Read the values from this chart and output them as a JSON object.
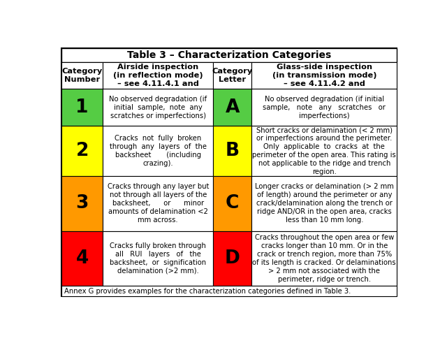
{
  "title": "Table 3 – Characterization Categories",
  "col_headers": [
    "Category\nNumber",
    "Airside inspection\n(in reflection mode)\n– see 4.11.4.1 and",
    "Category\nLetter",
    "Glass-side inspection\n(in transmission mode)\n– see 4.11.4.2 and"
  ],
  "rows": [
    {
      "number": "1",
      "number_color": "#55cc44",
      "number_text_color": "#000000",
      "airside_text": "No observed degradation (if\ninitial  sample,  note  any\nscratches or imperfections)",
      "letter": "A",
      "letter_color": "#55cc44",
      "letter_text_color": "#000000",
      "glassside_text": "No observed degradation (if initial\nsample,   note   any   scratches   or\nimperfections)"
    },
    {
      "number": "2",
      "number_color": "#ffff00",
      "number_text_color": "#000000",
      "airside_text": "Cracks  not  fully  broken\nthrough  any  layers  of  the\nbacksheet       (including\ncrazing).",
      "letter": "B",
      "letter_color": "#ffff00",
      "letter_text_color": "#000000",
      "glassside_text": "Short cracks or delamination (< 2 mm)\nor imperfections around the perimeter.\nOnly  applicable  to  cracks  at  the\nperimeter of the open area. This rating is\nnot applicable to the ridge and trench\nregion."
    },
    {
      "number": "3",
      "number_color": "#ff9900",
      "number_text_color": "#000000",
      "airside_text": "Cracks through any layer but\nnot through all layers of the\nbacksheet,      or      minor\namounts of delamination <2\nmm across.",
      "letter": "C",
      "letter_color": "#ff9900",
      "letter_text_color": "#000000",
      "glassside_text": "Longer cracks or delamination (> 2 mm\nof length) around the perimeter or any\ncrack/delamination along the trench or\nridge AND/OR in the open area, cracks\nless than 10 mm long."
    },
    {
      "number": "4",
      "number_color": "#ff0000",
      "number_text_color": "#000000",
      "airside_text": "Cracks fully broken through\nall   RUI   layers   of   the\nbacksheet,  or  signification\ndelamination (>2 mm).",
      "letter": "D",
      "letter_color": "#ff0000",
      "letter_text_color": "#000000",
      "glassside_text": "Cracks throughout the open area or few\ncracks longer than 10 mm. Or in the\ncrack or trench region, more than 75%\nof its length is cracked. Or delaminations\n> 2 mm not associated with the\nperimeter, ridge or trench."
    }
  ],
  "footer": "Annex G provides examples for the characterization categories defined in Table 3.",
  "bg_color": "#ffffff",
  "text_color": "#000000",
  "font_size": 7.2,
  "header_font_size": 8.2,
  "title_font_size": 10.0,
  "number_font_size": 19
}
